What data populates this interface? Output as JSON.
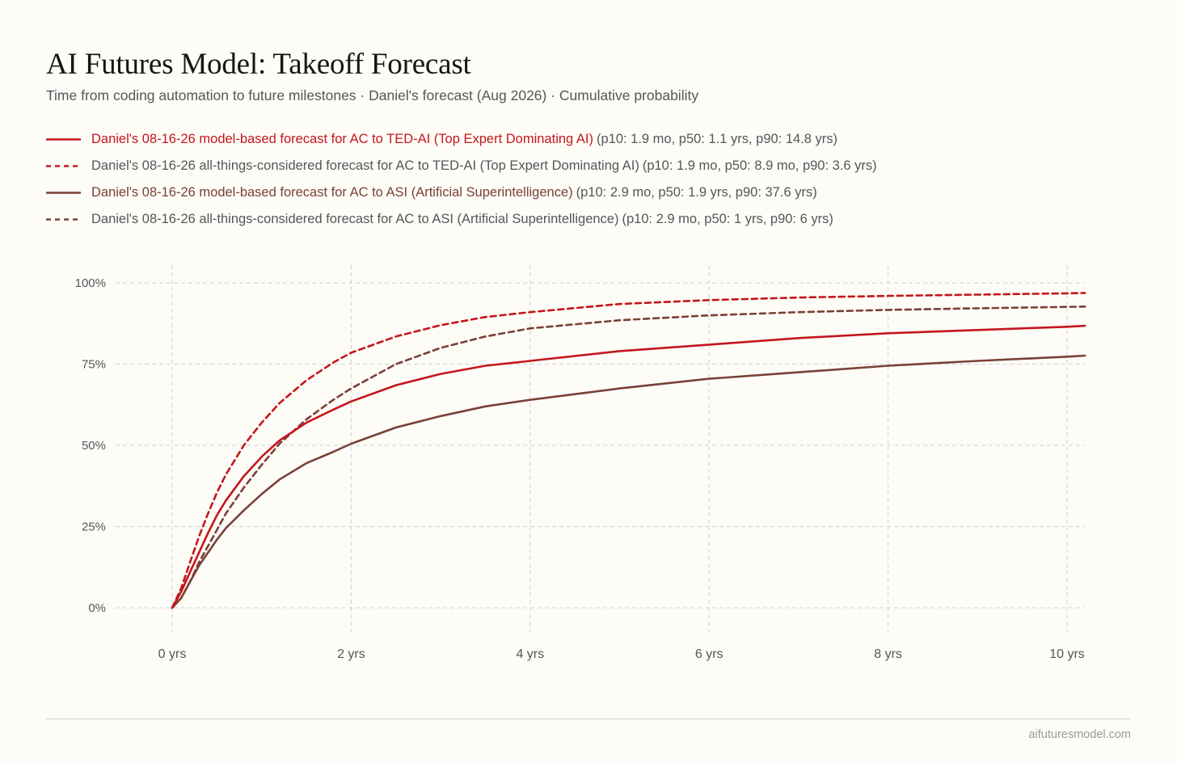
{
  "header": {
    "title": "AI Futures Model: Takeoff Forecast",
    "subtitle": "Time from coding automation to future milestones · Daniel's forecast (Aug 2026) · Cumulative probability"
  },
  "legend": [
    {
      "name": "Daniel's 08-16-26 model-based forecast for AC to TED-AI (Top Expert Dominating AI)",
      "stats": "(p10: 1.9 mo, p50: 1.1 yrs, p90: 14.8 yrs)",
      "color": "#c4161c",
      "dashed": false,
      "name_colored": true
    },
    {
      "name": "Daniel's 08-16-26 all-things-considered forecast for AC to TED-AI (Top Expert Dominating AI)",
      "stats": "(p10: 1.9 mo, p50: 8.9 mo, p90: 3.6 yrs)",
      "color": "#c4161c",
      "dashed": true,
      "name_colored": false
    },
    {
      "name": "Daniel's 08-16-26 model-based forecast for AC to ASI (Artificial Superintelligence)",
      "stats": "(p10: 2.9 mo, p50: 1.9 yrs, p90: 37.6 yrs)",
      "color": "#7a4038",
      "dashed": false,
      "name_colored": true
    },
    {
      "name": "Daniel's 08-16-26 all-things-considered forecast for AC to ASI (Artificial Superintelligence)",
      "stats": "(p10: 2.9 mo, p50: 1 yrs, p90: 6 yrs)",
      "color": "#7a4038",
      "dashed": true,
      "name_colored": false
    }
  ],
  "chart_data": {
    "type": "line",
    "xlim": [
      0,
      10.2
    ],
    "ylim": [
      0,
      100
    ],
    "x_ticks": [
      0,
      2,
      4,
      6,
      8,
      10
    ],
    "x_tick_labels": [
      "0 yrs",
      "2 yrs",
      "4 yrs",
      "6 yrs",
      "8 yrs",
      "10 yrs"
    ],
    "y_ticks": [
      0,
      25,
      50,
      75,
      100
    ],
    "y_tick_labels": [
      "0%",
      "25%",
      "50%",
      "75%",
      "100%"
    ],
    "grid": true,
    "legend_position": "top",
    "series": [
      {
        "name": "Daniel's 08-16-26 model-based forecast for AC to TED-AI (Top Expert Dominating AI)",
        "color": "#c4161c",
        "dashed": false,
        "x": [
          0,
          0.1,
          0.2,
          0.3,
          0.4,
          0.5,
          0.6,
          0.8,
          1.0,
          1.2,
          1.5,
          1.8,
          2.0,
          2.5,
          3.0,
          3.5,
          4.0,
          5.0,
          6.0,
          7.0,
          8.0,
          9.0,
          10.0,
          10.2
        ],
        "y": [
          0,
          5,
          11,
          17,
          23,
          28.5,
          33,
          40.5,
          46.5,
          51.5,
          57,
          61,
          63.5,
          68.5,
          72,
          74.5,
          76,
          79,
          81,
          83,
          84.5,
          85.5,
          86.5,
          86.8
        ]
      },
      {
        "name": "Daniel's 08-16-26 all-things-considered forecast for AC to TED-AI (Top Expert Dominating AI)",
        "color": "#c4161c",
        "dashed": true,
        "x": [
          0,
          0.1,
          0.2,
          0.3,
          0.4,
          0.5,
          0.6,
          0.8,
          1.0,
          1.2,
          1.5,
          1.8,
          2.0,
          2.5,
          3.0,
          3.5,
          4.0,
          5.0,
          6.0,
          7.0,
          8.0,
          9.0,
          10.0,
          10.2
        ],
        "y": [
          0,
          6,
          14,
          22,
          29,
          35.5,
          41,
          50,
          57,
          63,
          70,
          75.5,
          78.5,
          83.5,
          87,
          89.5,
          91,
          93.5,
          94.7,
          95.5,
          96,
          96.4,
          96.8,
          96.9
        ]
      },
      {
        "name": "Daniel's 08-16-26 model-based forecast for AC to ASI (Artificial Superintelligence)",
        "color": "#7a4038",
        "dashed": false,
        "x": [
          0,
          0.1,
          0.2,
          0.3,
          0.4,
          0.5,
          0.6,
          0.8,
          1.0,
          1.2,
          1.5,
          1.8,
          2.0,
          2.5,
          3.0,
          3.5,
          4.0,
          5.0,
          6.0,
          7.0,
          8.0,
          9.0,
          10.0,
          10.2
        ],
        "y": [
          0,
          3,
          8,
          13,
          17,
          21,
          24.5,
          30,
          35,
          39.5,
          44.5,
          48,
          50.5,
          55.5,
          59,
          62,
          64,
          67.5,
          70.5,
          72.5,
          74.5,
          76,
          77.3,
          77.6
        ]
      },
      {
        "name": "Daniel's 08-16-26 all-things-considered forecast for AC to ASI (Artificial Superintelligence)",
        "color": "#7a4038",
        "dashed": true,
        "x": [
          0,
          0.1,
          0.2,
          0.3,
          0.4,
          0.5,
          0.6,
          0.8,
          1.0,
          1.2,
          1.5,
          1.8,
          2.0,
          2.5,
          3.0,
          3.5,
          4.0,
          5.0,
          6.0,
          7.0,
          8.0,
          9.0,
          10.0,
          10.2
        ],
        "y": [
          0,
          3,
          8,
          14,
          19,
          24,
          29,
          37,
          44,
          50.5,
          58,
          64,
          67.5,
          75,
          80,
          83.5,
          86,
          88.5,
          90,
          91,
          91.7,
          92.2,
          92.6,
          92.7
        ]
      }
    ]
  },
  "footer": {
    "site": "aifuturesmodel.com"
  }
}
